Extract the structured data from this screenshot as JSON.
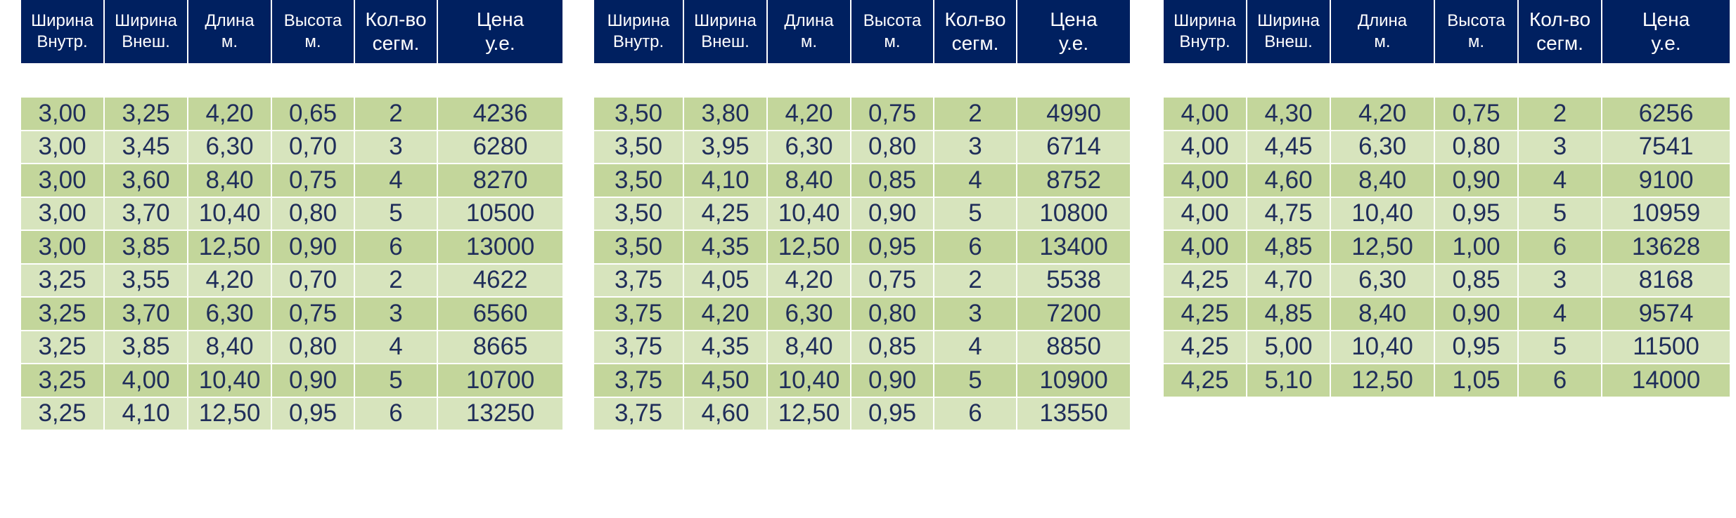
{
  "headers": [
    "Ширина\nВнутр.",
    "Ширина\nВнеш.",
    "Длина\nм.",
    "Высота\nм.",
    "Кол-во\nсегм.",
    "Цена\nу.е."
  ],
  "tables": [
    {
      "rows": [
        [
          "3,00",
          "3,25",
          "4,20",
          "0,65",
          "2",
          "4236"
        ],
        [
          "3,00",
          "3,45",
          "6,30",
          "0,70",
          "3",
          "6280"
        ],
        [
          "3,00",
          "3,60",
          "8,40",
          "0,75",
          "4",
          "8270"
        ],
        [
          "3,00",
          "3,70",
          "10,40",
          "0,80",
          "5",
          "10500"
        ],
        [
          "3,00",
          "3,85",
          "12,50",
          "0,90",
          "6",
          "13000"
        ],
        [
          "3,25",
          "3,55",
          "4,20",
          "0,70",
          "2",
          "4622"
        ],
        [
          "3,25",
          "3,70",
          "6,30",
          "0,75",
          "3",
          "6560"
        ],
        [
          "3,25",
          "3,85",
          "8,40",
          "0,80",
          "4",
          "8665"
        ],
        [
          "3,25",
          "4,00",
          "10,40",
          "0,90",
          "5",
          "10700"
        ],
        [
          "3,25",
          "4,10",
          "12,50",
          "0,95",
          "6",
          "13250"
        ]
      ]
    },
    {
      "rows": [
        [
          "3,50",
          "3,80",
          "4,20",
          "0,75",
          "2",
          "4990"
        ],
        [
          "3,50",
          "3,95",
          "6,30",
          "0,80",
          "3",
          "6714"
        ],
        [
          "3,50",
          "4,10",
          "8,40",
          "0,85",
          "4",
          "8752"
        ],
        [
          "3,50",
          "4,25",
          "10,40",
          "0,90",
          "5",
          "10800"
        ],
        [
          "3,50",
          "4,35",
          "12,50",
          "0,95",
          "6",
          "13400"
        ],
        [
          "3,75",
          "4,05",
          "4,20",
          "0,75",
          "2",
          "5538"
        ],
        [
          "3,75",
          "4,20",
          "6,30",
          "0,80",
          "3",
          "7200"
        ],
        [
          "3,75",
          "4,35",
          "8,40",
          "0,85",
          "4",
          "8850"
        ],
        [
          "3,75",
          "4,50",
          "10,40",
          "0,90",
          "5",
          "10900"
        ],
        [
          "3,75",
          "4,60",
          "12,50",
          "0,95",
          "6",
          "13550"
        ]
      ]
    },
    {
      "rows": [
        [
          "4,00",
          "4,30",
          "4,20",
          "0,75",
          "2",
          "6256"
        ],
        [
          "4,00",
          "4,45",
          "6,30",
          "0,80",
          "3",
          "7541"
        ],
        [
          "4,00",
          "4,60",
          "8,40",
          "0,90",
          "4",
          "9100"
        ],
        [
          "4,00",
          "4,75",
          "10,40",
          "0,95",
          "5",
          "10959"
        ],
        [
          "4,00",
          "4,85",
          "12,50",
          "1,00",
          "6",
          "13628"
        ],
        [
          "4,25",
          "4,70",
          "6,30",
          "0,85",
          "3",
          "8168"
        ],
        [
          "4,25",
          "4,85",
          "8,40",
          "0,90",
          "4",
          "9574"
        ],
        [
          "4,25",
          "5,00",
          "10,40",
          "0,95",
          "5",
          "11500"
        ],
        [
          "4,25",
          "5,10",
          "12,50",
          "1,05",
          "6",
          "14000"
        ]
      ]
    }
  ]
}
